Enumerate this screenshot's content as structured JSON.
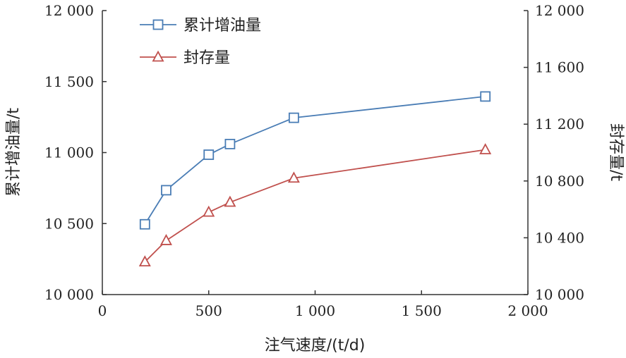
{
  "chart_data": {
    "type": "line",
    "title": "",
    "xlabel": "注气速度/(t/d)",
    "ylabel": "累计增油量/t",
    "y2label": "封存量/t",
    "x_ticks": [
      "0",
      "500",
      "1 000",
      "1 500",
      "2 000"
    ],
    "y_ticks": [
      "10 000",
      "10 500",
      "11 000",
      "11 500",
      "12 000"
    ],
    "y2_ticks": [
      "10 000",
      "10 400",
      "10 800",
      "11 200",
      "11 600",
      "12 000"
    ],
    "xlim": [
      0,
      2000
    ],
    "ylim": [
      10000,
      12000
    ],
    "y2lim": [
      10000,
      12000
    ],
    "grid": false,
    "legend_position": "top-left",
    "series": [
      {
        "name": "累计增油量",
        "axis": "left",
        "marker": "square",
        "color": "#4a7db5",
        "x": [
          200,
          300,
          500,
          600,
          900,
          1800
        ],
        "values": [
          10495,
          10735,
          10985,
          11060,
          11245,
          11395
        ]
      },
      {
        "name": "封存量",
        "axis": "right",
        "marker": "triangle",
        "color": "#c0504d",
        "x": [
          200,
          300,
          500,
          600,
          900,
          1800
        ],
        "values": [
          10230,
          10380,
          10580,
          10650,
          10820,
          11020
        ]
      }
    ]
  }
}
